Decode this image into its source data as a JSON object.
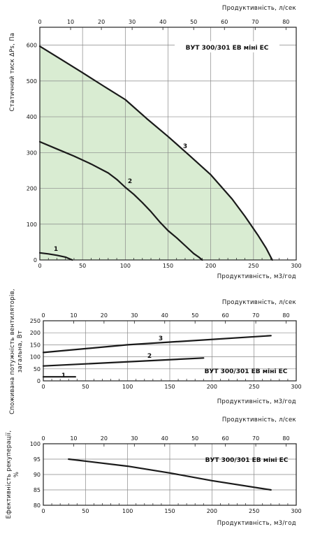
{
  "chart_data": [
    {
      "type": "line",
      "title": "ВУТ 300/301 ЕВ міні ЕС",
      "xlabel": "Продуктивність, м3/год",
      "x2label": "Продуктивність, л/сек",
      "ylabel": "Статичний тиск ΔPs, Па",
      "xlim": [
        0,
        300
      ],
      "x2lim": [
        0,
        83.33
      ],
      "ylim": [
        0,
        650
      ],
      "x_ticks": [
        "0",
        "50",
        "100",
        "150",
        "200",
        "250",
        "300"
      ],
      "x2_ticks": [
        "0",
        "10",
        "20",
        "30",
        "40",
        "50",
        "60",
        "70",
        "80"
      ],
      "y_ticks": [
        "0",
        "100",
        "200",
        "300",
        "400",
        "500",
        "600"
      ],
      "fill_color": "#d9ecd2",
      "series": [
        {
          "name": "1",
          "points": [
            [
              0,
              20
            ],
            [
              10,
              17
            ],
            [
              20,
              13
            ],
            [
              30,
              8
            ],
            [
              35,
              3
            ],
            [
              38,
              0
            ]
          ]
        },
        {
          "name": "2",
          "points": [
            [
              0,
              330
            ],
            [
              20,
              310
            ],
            [
              40,
              290
            ],
            [
              60,
              268
            ],
            [
              80,
              243
            ],
            [
              90,
              225
            ],
            [
              100,
              203
            ],
            [
              110,
              183
            ],
            [
              120,
              160
            ],
            [
              130,
              135
            ],
            [
              140,
              107
            ],
            [
              150,
              82
            ],
            [
              160,
              62
            ],
            [
              170,
              40
            ],
            [
              180,
              18
            ],
            [
              186,
              8
            ],
            [
              190,
              0
            ]
          ]
        },
        {
          "name": "3",
          "points": [
            [
              0,
              597
            ],
            [
              25,
              560
            ],
            [
              50,
              523
            ],
            [
              75,
              485
            ],
            [
              100,
              448
            ],
            [
              125,
              395
            ],
            [
              150,
              345
            ],
            [
              175,
              292
            ],
            [
              200,
              238
            ],
            [
              225,
              170
            ],
            [
              240,
              122
            ],
            [
              255,
              70
            ],
            [
              265,
              32
            ],
            [
              272,
              0
            ]
          ]
        }
      ]
    },
    {
      "type": "line",
      "title": "ВУТ 300/301 ЕВ міні ЕС",
      "xlabel": "Продуктивність, м3/год",
      "x2label": "Продуктивність, л/сек",
      "ylabel": "Споживана потужність вентиляторів, загальна, Вт",
      "xlim": [
        0,
        300
      ],
      "x2lim": [
        0,
        83.33
      ],
      "ylim": [
        0,
        250
      ],
      "x_ticks": [
        "0",
        "50",
        "100",
        "150",
        "200",
        "250",
        "300"
      ],
      "x2_ticks": [
        "0",
        "10",
        "20",
        "30",
        "40",
        "50",
        "60",
        "70",
        "80"
      ],
      "y_ticks": [
        "0",
        "50",
        "100",
        "150",
        "200",
        "250"
      ],
      "series": [
        {
          "name": "1",
          "points": [
            [
              0,
              17
            ],
            [
              38,
              17
            ]
          ]
        },
        {
          "name": "2",
          "points": [
            [
              0,
              62
            ],
            [
              190,
              95
            ]
          ]
        },
        {
          "name": "3",
          "points": [
            [
              0,
              118
            ],
            [
              100,
              150
            ],
            [
              270,
              188
            ]
          ]
        }
      ]
    },
    {
      "type": "line",
      "title": "ВУТ 300/301 ЕВ міні ЕС",
      "xlabel": "Продуктивність, м3/год",
      "x2label": "Продуктивність, л/сек",
      "ylabel": "Ефективність рекуперації, %",
      "xlim": [
        0,
        300
      ],
      "x2lim": [
        0,
        83.33
      ],
      "ylim": [
        80,
        100
      ],
      "x_ticks": [
        "0",
        "50",
        "100",
        "150",
        "200",
        "250",
        "300"
      ],
      "x2_ticks": [
        "0",
        "10",
        "20",
        "30",
        "40",
        "50",
        "60",
        "70",
        "80"
      ],
      "y_ticks": [
        "80",
        "85",
        "90",
        "95",
        "100"
      ],
      "series": [
        {
          "name": "",
          "points": [
            [
              30,
              95
            ],
            [
              100,
              92.7
            ],
            [
              150,
              90.5
            ],
            [
              200,
              88
            ],
            [
              270,
              85
            ]
          ]
        }
      ]
    }
  ]
}
